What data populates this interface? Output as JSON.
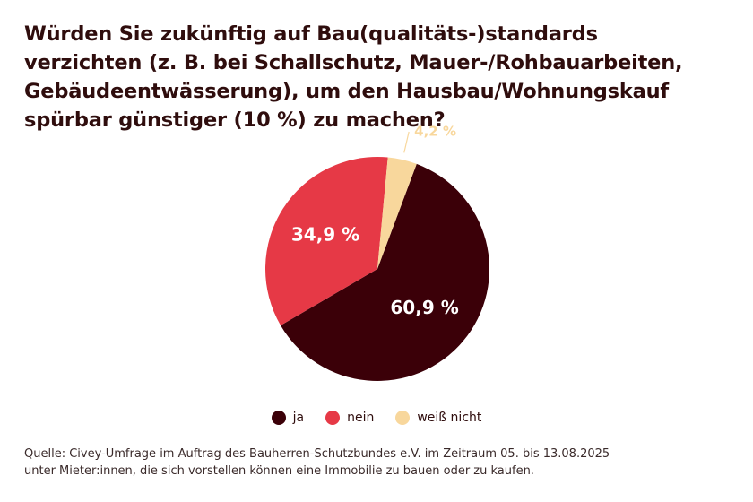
{
  "title_lines": [
    "Würden Sie zukünftig auf Bau(qualitäts-)standards",
    "verzichten (z. B. bei Schallschutz, Mauer-/Rohbauarbeiten,",
    "Gebäudeentwässerung), um den Hausbau/Wohnungskauf",
    "spürbar günstiger (10 %) zu machen?"
  ],
  "source_lines": [
    "Quelle: Civey-Umfrage im Auftrag des Bauherren-Schutzbundes e.V. im Zeitraum 05. bis 13.08.2025",
    "unter Mieter:innen, die sich vorstellen können eine Immobilie zu bauen oder zu kaufen."
  ],
  "chart_data": {
    "type": "pie",
    "title": "Würden Sie zukünftig auf Bau(qualitäts-)standards verzichten (z. B. bei Schallschutz, Mauer-/Rohbauarbeiten, Gebäudeentwässerung), um den Hausbau/Wohnungskauf spürbar günstiger (10 %) zu machen?",
    "slices": [
      {
        "label": "ja",
        "value": 60.9,
        "display": "60,9 %",
        "color": "#3b0008"
      },
      {
        "label": "nein",
        "value": 34.9,
        "display": "34,9 %",
        "color": "#e63946"
      },
      {
        "label": "weiß nicht",
        "value": 4.2,
        "display": "4,2 %",
        "color": "#f8d79c"
      }
    ],
    "legend_position": "bottom-center"
  }
}
